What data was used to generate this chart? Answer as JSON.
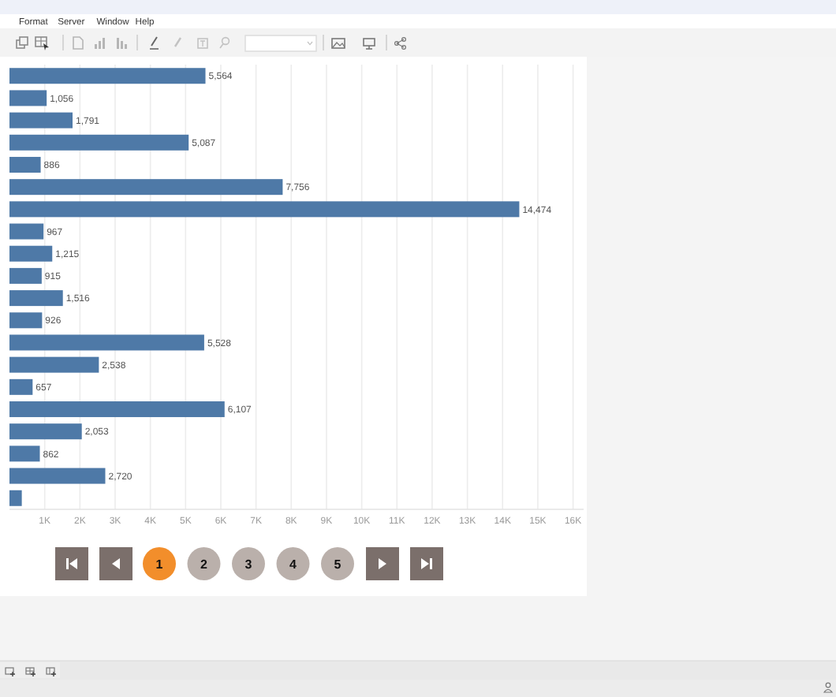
{
  "chart_data": {
    "type": "bar",
    "orientation": "horizontal",
    "categories": [
      null,
      null,
      null,
      null,
      null,
      null,
      null,
      null,
      null,
      null,
      null,
      null,
      null,
      null,
      null,
      null,
      null,
      null,
      null,
      null
    ],
    "values": [
      5564,
      1056,
      1791,
      5087,
      886,
      7756,
      14474,
      967,
      1215,
      915,
      1516,
      926,
      5528,
      2538,
      657,
      6107,
      2053,
      862,
      2720,
      350
    ],
    "value_labels": [
      "5,564",
      "1,056",
      "1,791",
      "5,087",
      "886",
      "7,756",
      "14,474",
      "967",
      "1,215",
      "915",
      "1,516",
      "926",
      "5,528",
      "2,538",
      "657",
      "6,107",
      "2,053",
      "862",
      "2,720",
      null
    ],
    "color": "#4e79a7",
    "xlim": [
      0,
      16300
    ],
    "xticks": [
      {
        "value": 1000,
        "label": "1K"
      },
      {
        "value": 2000,
        "label": "2K"
      },
      {
        "value": 3000,
        "label": "3K"
      },
      {
        "value": 4000,
        "label": "4K"
      },
      {
        "value": 5000,
        "label": "5K"
      },
      {
        "value": 6000,
        "label": "6K"
      },
      {
        "value": 7000,
        "label": "7K"
      },
      {
        "value": 8000,
        "label": "8K"
      },
      {
        "value": 9000,
        "label": "9K"
      },
      {
        "value": 10000,
        "label": "10K"
      },
      {
        "value": 11000,
        "label": "11K"
      },
      {
        "value": 12000,
        "label": "12K"
      },
      {
        "value": 13000,
        "label": "13K"
      },
      {
        "value": 14000,
        "label": "14K"
      },
      {
        "value": 15000,
        "label": "15K"
      },
      {
        "value": 16000,
        "label": "16K"
      }
    ],
    "grid": "x",
    "annotations": [
      "Format",
      "Server",
      "Window",
      "Help",
      "1",
      "2",
      "3",
      "4",
      "5"
    ]
  }
}
